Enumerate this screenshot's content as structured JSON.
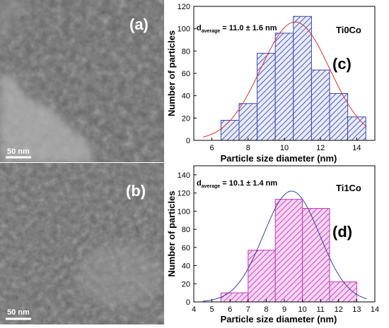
{
  "tem_panels": [
    {
      "panel_label": "(a)",
      "scale_bar_label": "50 nm"
    },
    {
      "panel_label": "(b)",
      "scale_bar_label": "50 nm"
    }
  ],
  "chart_data": [
    {
      "type": "bar",
      "panel_label": "(c)",
      "sample_label": "Ti0Co",
      "annotation": {
        "prefix": "d",
        "subscript": "average",
        "value": " = 11.0 ± 1.6 nm"
      },
      "xlabel": "Particle size diameter (nm)",
      "ylabel": "Number of particles",
      "xlim": [
        5,
        15
      ],
      "ylim": [
        0,
        120
      ],
      "xticks": [
        6,
        8,
        10,
        12,
        14
      ],
      "yticks": [
        0,
        20,
        40,
        60,
        80,
        100,
        120
      ],
      "bin_width": 1,
      "bin_centers": [
        7,
        8,
        9,
        10,
        11,
        12,
        13,
        14
      ],
      "values": [
        18,
        33,
        78,
        96,
        111,
        63,
        42,
        21
      ],
      "bar_fill": "#e8ecfa",
      "bar_color": "#3c46b4",
      "fit_color": "#d9352e",
      "fit": {
        "type": "gaussian",
        "center": 10.6,
        "sigma": 1.9,
        "peak": 106
      },
      "grid": false,
      "legend": "none"
    },
    {
      "type": "bar",
      "panel_label": "(d)",
      "sample_label": "Ti1Co",
      "annotation": {
        "prefix": "d",
        "subscript": "average",
        "value": " = 10.1 ± 1.4 nm"
      },
      "xlabel": "Particle size diameter (nm)",
      "ylabel": "Number of particles",
      "xlim": [
        4,
        14
      ],
      "ylim": [
        0,
        150
      ],
      "xticks": [
        4,
        5,
        6,
        7,
        8,
        9,
        10,
        11,
        12,
        13,
        14
      ],
      "yticks": [
        0,
        20,
        40,
        60,
        80,
        100,
        120,
        140
      ],
      "bin_width": 1.5,
      "bin_centers": [
        6.25,
        7.75,
        9.25,
        10.75,
        12.25
      ],
      "values": [
        10,
        57,
        113,
        103,
        22
      ],
      "bar_fill": "#f6d6f3",
      "bar_color": "#c637bf",
      "fit_color": "#3445a8",
      "fit": {
        "type": "gaussian",
        "center": 9.4,
        "sigma": 1.55,
        "peak": 122
      },
      "grid": false,
      "legend": "none"
    }
  ]
}
